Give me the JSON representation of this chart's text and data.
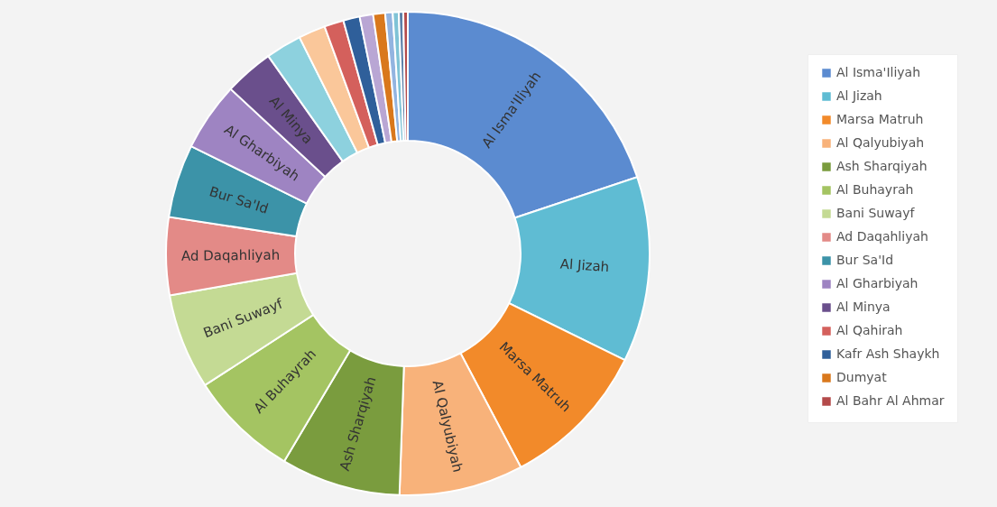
{
  "chart_data": {
    "type": "donut",
    "legend": "right",
    "categories": [
      "Al Isma'Iliyah",
      "Al Jizah",
      "Marsa Matruh",
      "Al Qalyubiyah",
      "Ash Sharqiyah",
      "Al Buhayrah",
      "Bani Suwayf",
      "Ad Daqahliyah",
      "Bur Sa'Id",
      "Al Gharbiyah",
      "Al Minya",
      null,
      null,
      "Al Qahirah",
      "Kafr Ash Shaykh",
      null,
      "Dumyat",
      null,
      null,
      null,
      "Al Bahr Al Ahmar"
    ],
    "values": [
      19.9,
      12.4,
      10.0,
      8.3,
      8.0,
      7.3,
      6.4,
      5.2,
      4.9,
      4.6,
      3.3,
      2.4,
      1.8,
      1.3,
      1.1,
      0.9,
      0.8,
      0.5,
      0.4,
      0.3,
      0.3
    ],
    "colors": [
      "#5b8bd0",
      "#5fbcd3",
      "#f28a2a",
      "#f8b27a",
      "#7a9c3e",
      "#a4c462",
      "#c4da94",
      "#e38a87",
      "#3c93a8",
      "#9e84c2",
      "#6a4f8c",
      "#8dd1de",
      "#fac79a",
      "#d4605c",
      "#2f5f9a",
      "#b9a6d4",
      "#d9781c",
      "#93b4e0",
      "#7fc3d6",
      "#5c7fa8",
      "#b44a4a"
    ]
  }
}
